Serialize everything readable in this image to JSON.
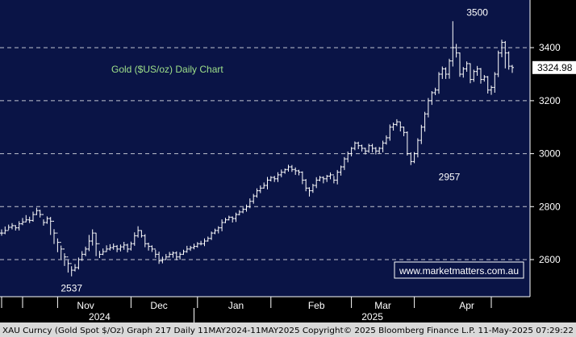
{
  "chart_data": {
    "type": "ohlc",
    "title": "Gold ($US/oz) Daily Chart",
    "watermark": "www.marketmatters.com.au",
    "last_price_label": "3324.98",
    "last_price": 3324.98,
    "ylim": [
      2460,
      3580
    ],
    "y_ticks": [
      2600,
      2800,
      3000,
      3200,
      3400
    ],
    "y_tick_labels": [
      "2600",
      "2800",
      "3000",
      "3200",
      "3400"
    ],
    "months": [
      {
        "label": "Nov",
        "day": 24
      },
      {
        "label": "Dec",
        "day": 45
      },
      {
        "label": "Jan",
        "day": 67
      },
      {
        "label": "Feb",
        "day": 90
      },
      {
        "label": "Mar",
        "day": 109
      },
      {
        "label": "Apr",
        "day": 133
      }
    ],
    "years": [
      {
        "label": "2024",
        "day": 28
      },
      {
        "label": "2025",
        "day": 106
      }
    ],
    "year_divider_day": 55,
    "annotations": [
      {
        "text": "2537",
        "day": 20,
        "value": 2537,
        "position": "below"
      },
      {
        "text": "2957",
        "day": 128,
        "value": 2957,
        "position": "below"
      },
      {
        "text": "3500",
        "day": 136,
        "value": 3500,
        "position": "above"
      }
    ],
    "series": [
      {
        "closes": [
          2700,
          2710,
          2722,
          2728,
          2720,
          2735,
          2742,
          2750,
          2748,
          2770,
          2785,
          2770,
          2740,
          2755,
          2745,
          2700,
          2665,
          2640,
          2610,
          2585,
          2560,
          2570,
          2600,
          2620,
          2640,
          2670,
          2700,
          2660,
          2620,
          2630,
          2640,
          2645,
          2650,
          2640,
          2648,
          2655,
          2640,
          2660,
          2690,
          2710,
          2690,
          2660,
          2650,
          2640,
          2620,
          2595,
          2600,
          2610,
          2620,
          2625,
          2610,
          2620,
          2630,
          2640,
          2645,
          2650,
          2660,
          2660,
          2670,
          2680,
          2700,
          2710,
          2720,
          2740,
          2750,
          2760,
          2755,
          2770,
          2780,
          2790,
          2800,
          2820,
          2840,
          2860,
          2870,
          2880,
          2900,
          2910,
          2905,
          2920,
          2930,
          2940,
          2950,
          2940,
          2935,
          2930,
          2900,
          2870,
          2860,
          2880,
          2900,
          2910,
          2905,
          2915,
          2920,
          2900,
          2930,
          2950,
          2980,
          3000,
          3020,
          3040,
          3030,
          3020,
          3010,
          3030,
          3020,
          3010,
          3020,
          3040,
          3060,
          3100,
          3110,
          3120,
          3100,
          3080,
          3000,
          2970,
          3000,
          3050,
          3100,
          3150,
          3200,
          3230,
          3240,
          3300,
          3320,
          3300,
          3350,
          3400,
          3380,
          3300,
          3320,
          3340,
          3280,
          3310,
          3320,
          3280,
          3290,
          3240,
          3250,
          3300,
          3380,
          3420,
          3380,
          3330,
          3324.98
        ],
        "highs": [
          2714,
          2725,
          2732,
          2738,
          2730,
          2745,
          2757,
          2768,
          2762,
          2781,
          2796,
          2788,
          2752,
          2763,
          2761,
          2715,
          2680,
          2653,
          2624,
          2598,
          2575,
          2583,
          2608,
          2632,
          2649,
          2693,
          2714,
          2701,
          2633,
          2642,
          2654,
          2658,
          2661,
          2655,
          2657,
          2667,
          2660,
          2668,
          2703,
          2726,
          2711,
          2696,
          2664,
          2654,
          2637,
          2630,
          2611,
          2621,
          2629,
          2631,
          2631,
          2628,
          2637,
          2652,
          2652,
          2660,
          2666,
          2671,
          2680,
          2687,
          2706,
          2717,
          2726,
          2752,
          2758,
          2766,
          2763,
          2777,
          2787,
          2797,
          2808,
          2831,
          2848,
          2869,
          2880,
          2891,
          2912,
          2915,
          2916,
          2930,
          2940,
          2944,
          2958,
          2957,
          2948,
          2939,
          2933,
          2904,
          2873,
          2886,
          2911,
          2916,
          2914,
          2920,
          2929,
          2916,
          2938,
          2955,
          2987,
          3008,
          3025,
          3046,
          3045,
          3034,
          3022,
          3037,
          3037,
          3025,
          3025,
          3049,
          3069,
          3110,
          3117,
          3130,
          3121,
          3102,
          3084,
          3005,
          3006,
          3058,
          3109,
          3158,
          3210,
          3236,
          3249,
          3308,
          3329,
          3326,
          3358,
          3500,
          3414,
          3382,
          3327,
          3348,
          3341,
          3317,
          3331,
          3323,
          3297,
          3293,
          3257,
          3308,
          3389,
          3430,
          3425,
          3386,
          3335
        ],
        "lows": [
          2690,
          2696,
          2712,
          2714,
          2710,
          2710,
          2730,
          2741,
          2738,
          2743,
          2768,
          2759,
          2728,
          2735,
          2693,
          2659,
          2628,
          2602,
          2576,
          2551,
          2537,
          2555,
          2563,
          2595,
          2613,
          2632,
          2653,
          2613,
          2606,
          2617,
          2629,
          2634,
          2637,
          2628,
          2631,
          2637,
          2627,
          2634,
          2652,
          2683,
          2683,
          2647,
          2634,
          2629,
          2607,
          2584,
          2586,
          2600,
          2608,
          2607,
          2598,
          2600,
          2618,
          2626,
          2633,
          2639,
          2645,
          2654,
          2651,
          2668,
          2674,
          2696,
          2699,
          2707,
          2738,
          2748,
          2740,
          2742,
          2767,
          2775,
          2781,
          2794,
          2811,
          2834,
          2851,
          2868,
          2865,
          2895,
          2893,
          2893,
          2911,
          2924,
          2932,
          2931,
          2920,
          2918,
          2885,
          2858,
          2838,
          2852,
          2870,
          2896,
          2888,
          2893,
          2903,
          2888,
          2884,
          2917,
          2938,
          2967,
          2990,
          3013,
          3017,
          3008,
          2997,
          3003,
          3005,
          2997,
          3001,
          3005,
          3034,
          3049,
          3087,
          3104,
          3084,
          3066,
          2993,
          2957,
          2964,
          2986,
          3036,
          3083,
          3137,
          3184,
          3221,
          3226,
          3282,
          3282,
          3283,
          3329,
          3363,
          3290,
          3287,
          3309,
          3266,
          3271,
          3294,
          3264,
          3272,
          3227,
          3222,
          3230,
          3289,
          3364,
          3322,
          3317,
          3305
        ]
      }
    ]
  },
  "footer": {
    "text": "XAU Curncy (Gold Spot  $/Oz) Graph 217  Daily 11MAY2024-11MAY2025 Copyright© 2025 Bloomberg Finance L.P.  11-May-2025 07:29:22"
  }
}
